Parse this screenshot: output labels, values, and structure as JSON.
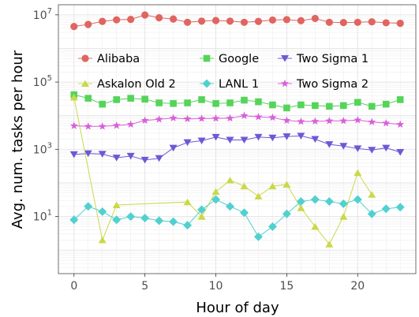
{
  "chart_data": {
    "type": "line",
    "xlabel": "Hour of day",
    "ylabel": "Avg. num. tasks per hour",
    "xlim": [
      -1.1,
      24.1
    ],
    "ylim": [
      0.2,
      20000000
    ],
    "yscale": "log10",
    "x_ticks": [
      0,
      5,
      10,
      15,
      20
    ],
    "x_tick_labels": [
      "0",
      "5",
      "10",
      "15",
      "20"
    ],
    "y_ticks": [
      10,
      1000,
      100000,
      10000000
    ],
    "y_tick_labels": [
      {
        "base": "10",
        "exp": "1"
      },
      {
        "base": "10",
        "exp": "3"
      },
      {
        "base": "10",
        "exp": "5"
      },
      {
        "base": "10",
        "exp": "7"
      }
    ],
    "grid": true,
    "legend_position": "inside-top",
    "series": [
      {
        "name": "Alibaba",
        "color": "#e06560",
        "marker": "circle",
        "x": [
          0,
          1,
          2,
          3,
          4,
          5,
          6,
          7,
          8,
          9,
          10,
          11,
          12,
          13,
          14,
          15,
          16,
          17,
          18,
          19,
          20,
          21,
          22,
          23
        ],
        "y": [
          4500000,
          5200000,
          6400000,
          7100000,
          7300000,
          9900000,
          8200000,
          7500000,
          6000000,
          6500000,
          6800000,
          6500000,
          6000000,
          6400000,
          7000000,
          7200000,
          6700000,
          7800000,
          6000000,
          5900000,
          6000000,
          6200000,
          5800000,
          5600000
        ]
      },
      {
        "name": "Google",
        "color": "#55d45a",
        "marker": "square",
        "x": [
          0,
          1,
          2,
          3,
          4,
          5,
          6,
          7,
          8,
          9,
          10,
          11,
          12,
          13,
          14,
          15,
          16,
          17,
          18,
          19,
          20,
          21,
          22,
          23
        ],
        "y": [
          42000,
          33000,
          22000,
          30000,
          33000,
          31000,
          24000,
          23000,
          24000,
          30000,
          23000,
          24000,
          29000,
          26000,
          21000,
          17000,
          21000,
          20000,
          19000,
          20000,
          25000,
          19000,
          22000,
          30000
        ]
      },
      {
        "name": "Two Sigma 1",
        "color": "#6a5ad6",
        "marker": "triangle-down",
        "x": [
          0,
          1,
          2,
          3,
          4,
          5,
          6,
          7,
          8,
          9,
          10,
          11,
          12,
          13,
          14,
          15,
          16,
          17,
          18,
          19,
          20,
          21,
          22,
          23
        ],
        "y": [
          700,
          750,
          720,
          560,
          630,
          480,
          540,
          1100,
          1600,
          1800,
          2300,
          1900,
          1900,
          2300,
          2200,
          2400,
          2500,
          2000,
          1400,
          1250,
          1050,
          950,
          1100,
          820
        ]
      },
      {
        "name": "Askalon Old 2",
        "color": "#cbd84a",
        "marker": "triangle-up",
        "x": [
          0,
          2,
          3,
          8,
          9,
          10,
          11,
          12,
          13,
          14,
          15,
          16,
          17,
          18,
          19,
          20,
          21
        ],
        "y": [
          35000,
          2,
          22,
          27,
          10,
          55,
          120,
          80,
          40,
          80,
          90,
          18,
          5,
          1.5,
          10,
          200,
          45
        ]
      },
      {
        "name": "LANL 1",
        "color": "#52d0d0",
        "marker": "diamond",
        "x": [
          0,
          1,
          2,
          3,
          4,
          5,
          6,
          7,
          8,
          9,
          10,
          11,
          12,
          13,
          14,
          15,
          16,
          17,
          18,
          19,
          20,
          21,
          22,
          23
        ],
        "y": [
          8,
          20,
          14,
          8,
          10,
          9,
          7.5,
          7,
          5.5,
          16,
          32,
          20,
          13,
          2.5,
          5,
          12,
          28,
          32,
          28,
          24,
          32,
          12,
          17,
          19
        ]
      },
      {
        "name": "Two Sigma 2",
        "color": "#d95fd9",
        "marker": "star",
        "x": [
          0,
          1,
          2,
          3,
          4,
          5,
          6,
          7,
          8,
          9,
          10,
          11,
          12,
          13,
          14,
          15,
          16,
          17,
          18,
          19,
          20,
          21,
          22,
          23
        ],
        "y": [
          5000,
          4800,
          4800,
          5100,
          5500,
          7200,
          7800,
          8500,
          8000,
          8200,
          8300,
          8400,
          10000,
          9200,
          8800,
          7200,
          6700,
          6800,
          7000,
          7000,
          7400,
          6500,
          6000,
          5500
        ]
      }
    ]
  }
}
